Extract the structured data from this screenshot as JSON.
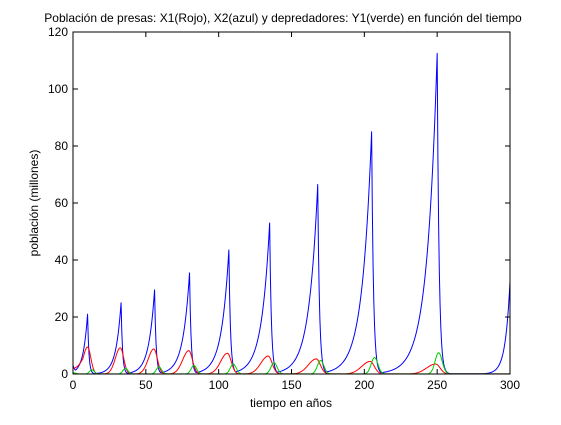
{
  "chart_data": {
    "type": "line",
    "title": "Población de presas: X1(Rojo), X2(azul) y depredadores: Y1(verde) en función del tiempo",
    "xlabel": "tiempo en años",
    "ylabel": "población (millones)",
    "xlim": [
      0,
      300
    ],
    "ylim": [
      0,
      120
    ],
    "xticks": [
      0,
      50,
      100,
      150,
      200,
      250,
      300
    ],
    "yticks": [
      0,
      20,
      40,
      60,
      80,
      100,
      120
    ],
    "grid": false,
    "legend": "none",
    "colors": {
      "X2": "#0000ff",
      "X1": "#ff0000",
      "Y1": "#00cc00",
      "axes": "#000000",
      "background": "#ffffff"
    },
    "series": [
      {
        "key": "X2",
        "color": "#0000ff",
        "peaks": [
          {
            "t": 10,
            "value": 21
          },
          {
            "t": 33,
            "value": 25
          },
          {
            "t": 56,
            "value": 29.5
          },
          {
            "t": 80,
            "value": 35.5
          },
          {
            "t": 107,
            "value": 43.5
          },
          {
            "t": 135,
            "value": 53
          },
          {
            "t": 168,
            "value": 66.5
          },
          {
            "t": 205,
            "value": 85
          },
          {
            "t": 250,
            "value": 112.5
          }
        ],
        "troughs": [
          {
            "t": 0,
            "value": 3
          },
          {
            "t": 20,
            "value": 0.5
          },
          {
            "t": 44,
            "value": 0.3
          },
          {
            "t": 67,
            "value": 0.2
          },
          {
            "t": 92,
            "value": 0.1
          },
          {
            "t": 120,
            "value": 0.1
          },
          {
            "t": 150,
            "value": 0.1
          },
          {
            "t": 186,
            "value": 0.1
          },
          {
            "t": 228,
            "value": 0.1
          },
          {
            "t": 275,
            "value": 0.1
          }
        ],
        "end": {
          "t": 300,
          "value": 32.5
        }
      },
      {
        "key": "X1",
        "color": "#ff0000",
        "peaks": [
          {
            "t": 10,
            "value": 9.5
          },
          {
            "t": 32.5,
            "value": 9.2
          },
          {
            "t": 55.5,
            "value": 8.8
          },
          {
            "t": 79.5,
            "value": 8.2
          },
          {
            "t": 106,
            "value": 7.3
          },
          {
            "t": 134,
            "value": 6.3
          },
          {
            "t": 167,
            "value": 5.3
          },
          {
            "t": 204,
            "value": 4.4
          },
          {
            "t": 249,
            "value": 3.5
          }
        ],
        "start": {
          "t": 0,
          "value": 2
        }
      },
      {
        "key": "Y1",
        "color": "#00cc00",
        "peaks": [
          {
            "t": 13,
            "value": 1.5
          },
          {
            "t": 36,
            "value": 2
          },
          {
            "t": 59,
            "value": 2.5
          },
          {
            "t": 83,
            "value": 3
          },
          {
            "t": 110,
            "value": 3.5
          },
          {
            "t": 138,
            "value": 4
          },
          {
            "t": 170,
            "value": 4.8
          },
          {
            "t": 207,
            "value": 5.8
          },
          {
            "t": 251,
            "value": 7.5
          }
        ],
        "start": {
          "t": 0,
          "value": 0.5
        }
      }
    ]
  }
}
